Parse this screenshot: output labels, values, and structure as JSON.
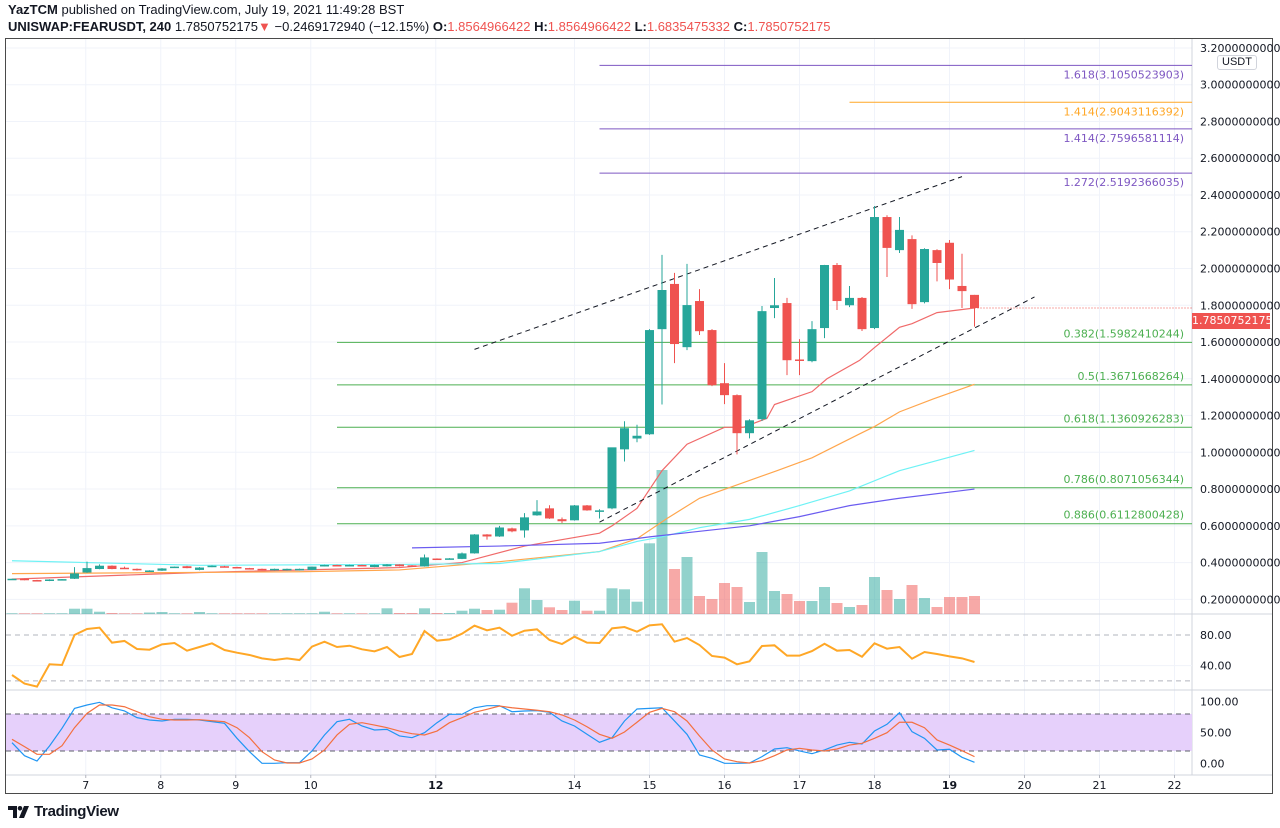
{
  "header": {
    "author": "YazTCM",
    "published": "published on TradingView.com, July 19, 2021 11:49:28 BST",
    "symbol": "UNISWAP:FEARUSDT, 240",
    "last": "1.7850752175",
    "direction_icon": "triangle-down-icon",
    "direction_glyph": "▼",
    "change": "−0.2469172940 (−12.15%)",
    "ohlc": [
      {
        "key": "O:",
        "value": "1.8564966422"
      },
      {
        "key": "H:",
        "value": "1.8564966422"
      },
      {
        "key": "L:",
        "value": "1.6835475332"
      },
      {
        "key": "C:",
        "value": "1.7850752175"
      }
    ]
  },
  "colors": {
    "up": "#26a69a",
    "down": "#ef5350",
    "fib_purple": "#7e57c2",
    "fib_orange": "#ffa726",
    "fib_green": "#4caf50"
  },
  "chart_data": {
    "type": "candlestick",
    "interval": "240",
    "currency": "USDT",
    "ylim": [
      0.2,
      3.2
    ],
    "price_ticks": [
      "3.2000000000",
      "3.0000000000",
      "2.8000000000",
      "2.6000000000",
      "2.4000000000",
      "2.2000000000",
      "2.0000000000",
      "1.8000000000",
      "1.6000000000",
      "1.4000000000",
      "1.2000000000",
      "1.0000000000",
      "0.8000000000",
      "0.6000000000",
      "0.4000000000",
      "0.2000000000"
    ],
    "x_ticks": [
      "7",
      "8",
      "9",
      "10",
      "12",
      "14",
      "15",
      "16",
      "17",
      "18",
      "19",
      "20",
      "21",
      "22"
    ],
    "current_price": "1.7850752175",
    "candles_ohlc": [
      [
        0.31,
        0.312,
        0.308,
        0.312
      ],
      [
        0.312,
        0.313,
        0.304,
        0.305
      ],
      [
        0.305,
        0.306,
        0.298,
        0.3
      ],
      [
        0.3,
        0.309,
        0.299,
        0.308
      ],
      [
        0.305,
        0.311,
        0.304,
        0.31
      ],
      [
        0.312,
        0.375,
        0.311,
        0.341
      ],
      [
        0.346,
        0.405,
        0.344,
        0.37
      ],
      [
        0.365,
        0.39,
        0.364,
        0.383
      ],
      [
        0.383,
        0.385,
        0.364,
        0.365
      ],
      [
        0.372,
        0.378,
        0.366,
        0.368
      ],
      [
        0.366,
        0.368,
        0.356,
        0.358
      ],
      [
        0.354,
        0.358,
        0.352,
        0.357
      ],
      [
        0.356,
        0.37,
        0.355,
        0.368
      ],
      [
        0.375,
        0.379,
        0.373,
        0.378
      ],
      [
        0.38,
        0.382,
        0.369,
        0.37
      ],
      [
        0.36,
        0.375,
        0.358,
        0.373
      ],
      [
        0.376,
        0.385,
        0.375,
        0.383
      ],
      [
        0.38,
        0.382,
        0.374,
        0.375
      ],
      [
        0.376,
        0.377,
        0.369,
        0.37
      ],
      [
        0.37,
        0.371,
        0.365,
        0.366
      ],
      [
        0.366,
        0.367,
        0.359,
        0.36
      ],
      [
        0.358,
        0.367,
        0.357,
        0.366
      ],
      [
        0.358,
        0.367,
        0.357,
        0.366
      ],
      [
        0.358,
        0.367,
        0.357,
        0.366
      ],
      [
        0.36,
        0.379,
        0.359,
        0.378
      ],
      [
        0.38,
        0.388,
        0.379,
        0.387
      ],
      [
        0.387,
        0.388,
        0.381,
        0.382
      ],
      [
        0.382,
        0.388,
        0.381,
        0.387
      ],
      [
        0.387,
        0.388,
        0.381,
        0.382
      ],
      [
        0.376,
        0.388,
        0.375,
        0.387
      ],
      [
        0.38,
        0.392,
        0.379,
        0.39
      ],
      [
        0.39,
        0.391,
        0.379,
        0.38
      ],
      [
        0.385,
        0.386,
        0.377,
        0.378
      ],
      [
        0.379,
        0.444,
        0.378,
        0.428
      ],
      [
        0.422,
        0.423,
        0.418,
        0.419
      ],
      [
        0.42,
        0.424,
        0.419,
        0.423
      ],
      [
        0.42,
        0.455,
        0.419,
        0.45
      ],
      [
        0.45,
        0.555,
        0.449,
        0.553
      ],
      [
        0.553,
        0.555,
        0.525,
        0.542
      ],
      [
        0.542,
        0.6,
        0.54,
        0.591
      ],
      [
        0.586,
        0.59,
        0.565,
        0.57
      ],
      [
        0.575,
        0.669,
        0.536,
        0.646
      ],
      [
        0.657,
        0.74,
        0.655,
        0.678
      ],
      [
        0.695,
        0.712,
        0.638,
        0.64
      ],
      [
        0.636,
        0.645,
        0.615,
        0.625
      ],
      [
        0.63,
        0.713,
        0.628,
        0.711
      ],
      [
        0.711,
        0.713,
        0.682,
        0.684
      ],
      [
        0.678,
        0.69,
        0.64,
        0.684
      ],
      [
        0.695,
        0.72,
        0.69,
        1.027
      ],
      [
        1.016,
        1.169,
        0.95,
        1.131
      ],
      [
        1.075,
        1.15,
        1.055,
        1.09
      ],
      [
        1.098,
        1.67,
        1.095,
        1.665
      ],
      [
        1.67,
        2.074,
        1.26,
        1.883
      ],
      [
        1.916,
        1.976,
        1.485,
        1.589
      ],
      [
        1.572,
        2.025,
        1.556,
        1.801
      ],
      [
        1.823,
        1.888,
        1.638,
        1.659
      ],
      [
        1.665,
        1.67,
        1.36,
        1.365
      ],
      [
        1.376,
        1.485,
        1.262,
        1.311
      ],
      [
        1.311,
        1.315,
        0.989,
        1.104
      ],
      [
        1.104,
        1.18,
        1.076,
        1.174
      ],
      [
        1.18,
        1.796,
        1.17,
        1.768
      ],
      [
        1.785,
        1.948,
        1.73,
        1.8
      ],
      [
        1.812,
        1.84,
        1.42,
        1.501
      ],
      [
        1.505,
        1.616,
        1.42,
        1.498
      ],
      [
        1.496,
        1.714,
        1.49,
        1.67
      ],
      [
        1.676,
        2.02,
        1.621,
        2.019
      ],
      [
        2.019,
        2.03,
        1.774,
        1.823
      ],
      [
        1.8,
        1.905,
        1.79,
        1.84
      ],
      [
        1.84,
        1.845,
        1.66,
        1.67
      ],
      [
        1.676,
        2.34,
        1.67,
        2.28
      ],
      [
        2.28,
        2.29,
        1.954,
        2.112
      ],
      [
        2.1,
        2.28,
        2.084,
        2.21
      ],
      [
        2.16,
        2.18,
        1.78,
        1.806
      ],
      [
        1.817,
        2.11,
        1.81,
        2.106
      ],
      [
        2.1,
        2.105,
        1.93,
        2.03
      ],
      [
        2.14,
        2.155,
        1.888,
        1.94
      ],
      [
        1.905,
        2.08,
        1.785,
        1.877
      ],
      [
        1.8565,
        1.8565,
        1.6835,
        1.7851
      ]
    ],
    "volume_relative": [
      0.7,
      0.7,
      0.7,
      0.7,
      0.7,
      5.3,
      5.3,
      2.3,
      1,
      0.7,
      0.7,
      1.5,
      2,
      0.7,
      0.7,
      2,
      0.7,
      0.7,
      0.7,
      0.7,
      0.7,
      0.7,
      0.7,
      0.7,
      0.7,
      2.3,
      0.7,
      0.7,
      0.7,
      0.7,
      5.7,
      1,
      1,
      5.7,
      1,
      1,
      3.3,
      5.3,
      4,
      4.3,
      11.3,
      25.7,
      14,
      6.7,
      4,
      13.3,
      3.3,
      3.3,
      25.7,
      24.7,
      12.3,
      70.7,
      144,
      45,
      57,
      18,
      15,
      31,
      27,
      12,
      62,
      23,
      20,
      13,
      13,
      27,
      11,
      7,
      9,
      37,
      24,
      15,
      29,
      16,
      7,
      17,
      17,
      18
    ],
    "moving_averages": [
      {
        "color": "#f06a6a",
        "points": [
          [
            0,
            0.31
          ],
          [
            15,
            0.346
          ],
          [
            31,
            0.373
          ],
          [
            36,
            0.4
          ],
          [
            41,
            0.49
          ],
          [
            47,
            0.56
          ],
          [
            48,
            0.6
          ],
          [
            50,
            0.695
          ],
          [
            52,
            0.9
          ],
          [
            54,
            1.044
          ],
          [
            57,
            1.136
          ],
          [
            58.5,
            1.136
          ],
          [
            60.4,
            1.185
          ],
          [
            61,
            1.26
          ],
          [
            64,
            1.33
          ],
          [
            65.2,
            1.4
          ],
          [
            67.8,
            1.5
          ],
          [
            69,
            1.57
          ],
          [
            71,
            1.68
          ],
          [
            72,
            1.7
          ],
          [
            74,
            1.76
          ],
          [
            77,
            1.785
          ]
        ]
      },
      {
        "color": "#ffa64d",
        "points": [
          [
            0,
            0.34
          ],
          [
            23,
            0.35
          ],
          [
            31,
            0.36
          ],
          [
            39,
            0.405
          ],
          [
            47,
            0.46
          ],
          [
            50,
            0.53
          ],
          [
            52.4,
            0.64
          ],
          [
            55,
            0.75
          ],
          [
            61.2,
            0.9
          ],
          [
            64,
            0.97
          ],
          [
            67.8,
            1.1
          ],
          [
            69,
            1.14
          ],
          [
            71,
            1.22
          ],
          [
            73.7,
            1.29
          ],
          [
            77,
            1.37
          ]
        ]
      },
      {
        "color": "#6ef2f5",
        "points": [
          [
            0,
            0.41
          ],
          [
            15,
            0.385
          ],
          [
            31,
            0.39
          ],
          [
            39,
            0.395
          ],
          [
            47,
            0.46
          ],
          [
            50,
            0.515
          ],
          [
            52,
            0.54
          ],
          [
            55,
            0.59
          ],
          [
            59,
            0.635
          ],
          [
            63,
            0.71
          ],
          [
            67,
            0.79
          ],
          [
            71,
            0.9
          ],
          [
            77,
            1.01
          ]
        ]
      },
      {
        "color": "#6b5cf0",
        "points": [
          [
            32,
            0.48
          ],
          [
            39,
            0.49
          ],
          [
            47,
            0.505
          ],
          [
            51,
            0.54
          ],
          [
            55,
            0.57
          ],
          [
            59,
            0.6
          ],
          [
            63,
            0.65
          ],
          [
            67,
            0.71
          ],
          [
            71,
            0.75
          ],
          [
            77,
            0.8
          ]
        ]
      }
    ],
    "trendlines": [
      {
        "style": "dashed",
        "from": [
          37,
          1.56
        ],
        "to": [
          76,
          2.5
        ]
      },
      {
        "style": "dashed",
        "from": [
          47,
          0.62
        ],
        "to": [
          81.8,
          1.845
        ]
      }
    ],
    "fib_levels": [
      {
        "label": "1.618(3.1050523903)",
        "price": 3.1050523903,
        "color": "#7e57c2"
      },
      {
        "label": "1.414(2.9043116392)",
        "price": 2.9043116392,
        "color": "#ffa726"
      },
      {
        "label": "1.414(2.7596581114)",
        "price": 2.7596581114,
        "color": "#7e57c2"
      },
      {
        "label": "1.272(2.5192366035)",
        "price": 2.5192366035,
        "color": "#7e57c2"
      },
      {
        "label": "0.382(1.5982410244)",
        "price": 1.5982410244,
        "color": "#4caf50"
      },
      {
        "label": "0.5(1.3671668264)",
        "price": 1.3671668264,
        "color": "#4caf50"
      },
      {
        "label": "0.618(1.1360926283)",
        "price": 1.1360926283,
        "color": "#4caf50"
      },
      {
        "label": "0.786(0.8071056344)",
        "price": 0.8071056344,
        "color": "#4caf50"
      },
      {
        "label": "0.886(0.6112800428)",
        "price": 0.6112800428,
        "color": "#4caf50"
      }
    ],
    "rsi": {
      "ticks": [
        "80.00",
        "40.00"
      ],
      "bands": [
        80,
        20
      ],
      "color": "#ffa726",
      "values": [
        27.7,
        16.5,
        12.5,
        41.7,
        40.8,
        80,
        87.8,
        89.6,
        70,
        72.2,
        61.7,
        60.8,
        67.8,
        69.5,
        59.5,
        64.3,
        69.1,
        60.4,
        56.9,
        53.9,
        49.5,
        47.3,
        49.5,
        47.3,
        64.8,
        71.3,
        64.3,
        66,
        61.3,
        58.6,
        64.3,
        51.2,
        55.2,
        85.2,
        72.6,
        74.3,
        81.7,
        92.2,
        86.1,
        89.6,
        79,
        85.6,
        87.4,
        73.5,
        68.2,
        77.8,
        70,
        69.5,
        88.7,
        90.4,
        84.4,
        92.6,
        94,
        71.3,
        76,
        66.9,
        52.6,
        50.4,
        41.7,
        45.6,
        65.6,
        66.5,
        53,
        53,
        59,
        68.6,
        59.5,
        60.4,
        51.6,
        69.1,
        62.1,
        64.3,
        49,
        57.8,
        55.2,
        52.1,
        49.5,
        44.7
      ]
    },
    "stoch_rsi": {
      "ticks": [
        "100.00",
        "50.00",
        "0.00"
      ],
      "bands": [
        80,
        20
      ],
      "band_fill": "#e6d0fb",
      "k_color": "#2196f3",
      "d_color": "#f4703f",
      "k": [
        33.4,
        12.3,
        3.7,
        28,
        56.7,
        89,
        94.5,
        98.8,
        90,
        84.8,
        74,
        70.2,
        68.6,
        71.3,
        71.3,
        70.2,
        67.5,
        64.8,
        40.5,
        18.8,
        0,
        0,
        1,
        1,
        20,
        45.9,
        67.5,
        71.3,
        60.5,
        54,
        55,
        44.3,
        41.5,
        49.6,
        65.8,
        79.4,
        79.4,
        90,
        93.4,
        93.4,
        83.6,
        84.8,
        85.4,
        82.6,
        68.6,
        60.5,
        47,
        34,
        41.5,
        68.6,
        88,
        89,
        90,
        68.6,
        47,
        13.5,
        8.1,
        0,
        0,
        0.5,
        10.8,
        23.2,
        25.3,
        20,
        15.6,
        21.6,
        29.6,
        34,
        31.3,
        52.3,
        63.2,
        82,
        51.2,
        40.5,
        21.6,
        22.7,
        9.7,
        1.6
      ],
      "d": [
        38.9,
        27,
        14.6,
        14.6,
        28.5,
        57.7,
        81,
        94.5,
        94.5,
        91.7,
        83.6,
        75.5,
        71.3,
        70.2,
        70.2,
        70.7,
        69,
        67.5,
        57.7,
        41.5,
        18.8,
        5.4,
        0.5,
        0.5,
        7,
        21.6,
        45.9,
        63.2,
        65.8,
        62,
        57.7,
        52.3,
        48,
        45.9,
        52.3,
        65.8,
        74,
        82.6,
        87.5,
        92.8,
        90,
        88,
        86,
        83.6,
        78.3,
        70.2,
        59.3,
        47,
        40.5,
        50.7,
        66.5,
        82.6,
        89,
        83.6,
        68.6,
        44.3,
        21.6,
        7,
        2.6,
        0.5,
        4.2,
        12.3,
        21.6,
        24.3,
        21.6,
        20,
        23.2,
        29.6,
        32.4,
        40.5,
        49.6,
        66.5,
        66.5,
        57.7,
        37.8,
        29.6,
        20.5,
        10.8
      ]
    }
  },
  "branding": {
    "logo_text": "TradingView"
  }
}
